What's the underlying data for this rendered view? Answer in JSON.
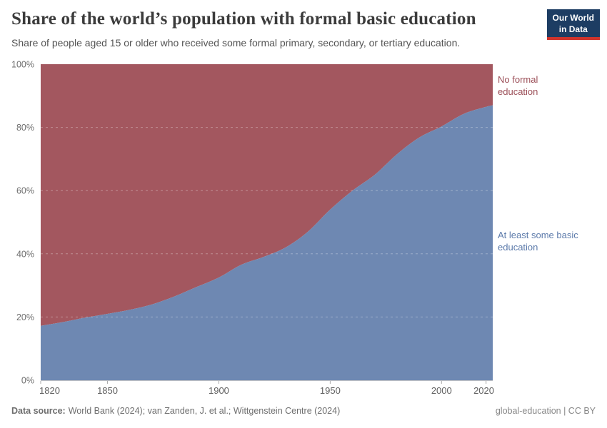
{
  "logo": {
    "line1": "Our World",
    "line2": "in Data",
    "bg": "#1d3d63",
    "accent": "#d0342c"
  },
  "chart_data": {
    "type": "area",
    "stacked": true,
    "title": "Share of the world’s population with formal basic education",
    "subtitle": "Share of people aged 15 or older who received some formal primary, secondary, or tertiary education.",
    "x": [
      1820,
      1830,
      1840,
      1850,
      1860,
      1870,
      1880,
      1890,
      1900,
      1910,
      1920,
      1930,
      1940,
      1950,
      1960,
      1970,
      1980,
      1990,
      2000,
      2010,
      2020,
      2023
    ],
    "series": [
      {
        "name": "At least some basic education",
        "color": "#6e88b2",
        "label_color": "#5d7bab",
        "values": [
          17.2,
          18.4,
          19.8,
          21.0,
          22.3,
          24.0,
          26.5,
          29.5,
          32.5,
          36.5,
          39.0,
          42.0,
          47.0,
          54.0,
          60.0,
          65.0,
          71.5,
          76.8,
          80.3,
          84.3,
          86.5,
          87.0
        ]
      },
      {
        "name": "No formal education",
        "color": "#a3575f",
        "label_color": "#9c5059",
        "values": [
          82.8,
          81.6,
          80.2,
          79.0,
          77.7,
          76.0,
          73.5,
          70.5,
          67.5,
          63.5,
          61.0,
          58.0,
          53.0,
          46.0,
          40.0,
          35.0,
          28.5,
          23.2,
          19.7,
          15.7,
          13.5,
          13.0
        ]
      }
    ],
    "xlim": [
      1820,
      2023
    ],
    "ylim": [
      0,
      100
    ],
    "x_ticks": [
      1820,
      1850,
      1900,
      1950,
      2000,
      2020
    ],
    "y_ticks": [
      0,
      20,
      40,
      60,
      80,
      100
    ],
    "y_tick_suffix": "%",
    "grid": "horizontal-dashed",
    "legend_position": "right-inline-labels"
  },
  "footer": {
    "source_label": "Data source:",
    "source_text": "World Bank (2024); van Zanden, J. et al.; Wittgenstein Centre (2024)",
    "right_text": "global-education | CC BY"
  }
}
